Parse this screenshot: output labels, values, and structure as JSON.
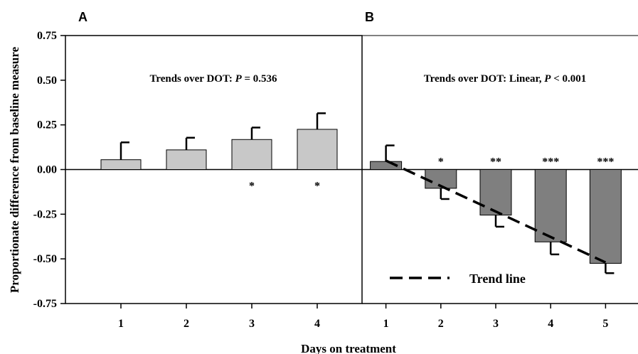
{
  "figure": {
    "ylabel": "Proportionate difference from baseline measure",
    "xlabel": "Days on treatment"
  },
  "chart_data": [
    {
      "type": "bar",
      "panel_label": "A",
      "annotation": {
        "prefix": "Trends over DOT:  ",
        "p_symbol": "P",
        "p_value": " = 0.536"
      },
      "categories": [
        "1",
        "2",
        "3",
        "4"
      ],
      "series": [
        {
          "values": [
            0.055,
            0.11,
            0.168,
            0.225
          ],
          "error_upper": [
            0.152,
            0.178,
            0.235,
            0.315
          ],
          "significance_below": [
            "",
            "",
            "*",
            "*"
          ],
          "color": "#c8c8c8"
        }
      ],
      "ylim": [
        -0.75,
        0.75
      ],
      "yticks": [
        "0.75",
        "0.50",
        "0.25",
        "0.00",
        "-0.25",
        "-0.50",
        "-0.75"
      ],
      "ytick_values": [
        0.75,
        0.5,
        0.25,
        0,
        -0.25,
        -0.5,
        -0.75
      ],
      "grid": false
    },
    {
      "type": "bar",
      "panel_label": "B",
      "annotation": {
        "prefix": "Trends over DOT:  Linear, ",
        "p_symbol": "P",
        "p_value": " < 0.001"
      },
      "categories": [
        "1",
        "2",
        "3",
        "4",
        "5"
      ],
      "series": [
        {
          "values": [
            0.045,
            -0.105,
            -0.255,
            -0.405,
            -0.525
          ],
          "error_upper": [
            0.135,
            -0.165,
            -0.32,
            -0.475,
            -0.58
          ],
          "significance_above": [
            "",
            "*",
            "**",
            "***",
            "***"
          ],
          "color": "#7f7f7f"
        }
      ],
      "trend_line": {
        "start": [
          1,
          0.05
        ],
        "end": [
          5,
          -0.52
        ],
        "style": "dashed"
      },
      "legend": {
        "label": "Trend line",
        "placement": "bottom-left"
      },
      "ylim": [
        -0.75,
        0.75
      ],
      "grid": false
    }
  ]
}
